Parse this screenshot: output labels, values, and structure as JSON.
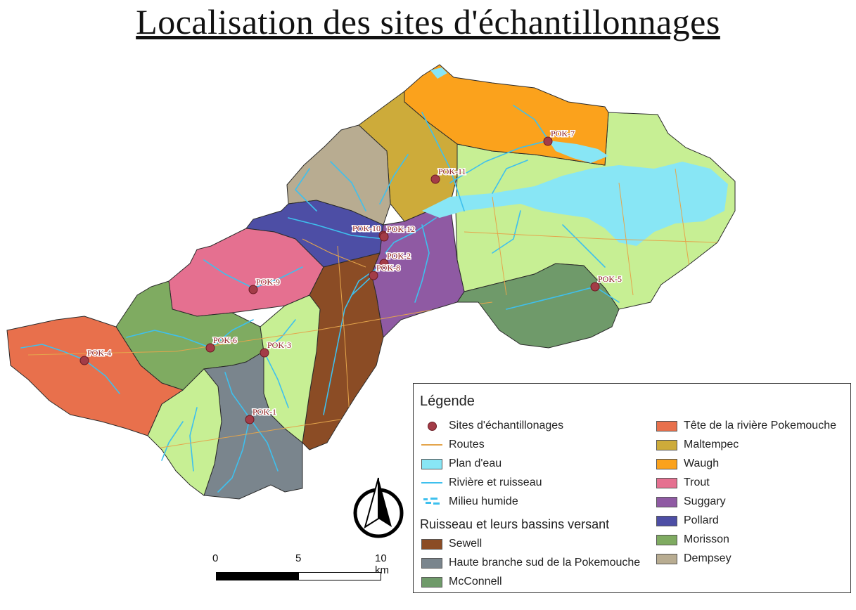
{
  "title": "Localisation des sites d'échantillonnages",
  "colors": {
    "sewell": "#8b4c25",
    "haute_branche": "#7a858d",
    "mcconnell": "#6f9a6a",
    "tete": "#e8704c",
    "maltempec": "#cdab3a",
    "waugh": "#fba21c",
    "trout": "#e57090",
    "suggary": "#8f5aa3",
    "pollard": "#4d4ea5",
    "morisson": "#7fab61",
    "dempsey": "#b8ac91",
    "pokemouche_main": "#c7ef94",
    "water": "#88e6f5",
    "river": "#3ec0ee",
    "road": "#e4a54c",
    "site": "#a33c47"
  },
  "legend": {
    "title": "Légende",
    "items": [
      {
        "label": "Sites d'échantillonages",
        "symbol": "point"
      },
      {
        "label": "Routes",
        "symbol": "road"
      },
      {
        "label": "Plan d'eau",
        "symbol": "water"
      },
      {
        "label": "Rivière et ruisseau",
        "symbol": "river"
      },
      {
        "label": "Milieu humide",
        "symbol": "wetland"
      }
    ],
    "section_title": "Ruisseau et leurs bassins versant",
    "basins_left": [
      {
        "label": "Sewell",
        "color_key": "sewell"
      },
      {
        "label": "Haute branche sud de la Pokemouche",
        "color_key": "haute_branche"
      },
      {
        "label": "McConnell",
        "color_key": "mcconnell"
      }
    ],
    "basins_right": [
      {
        "label": "Tête de la rivière Pokemouche",
        "color_key": "tete"
      },
      {
        "label": "Maltempec",
        "color_key": "maltempec"
      },
      {
        "label": "Waugh",
        "color_key": "waugh"
      },
      {
        "label": "Trout",
        "color_key": "trout"
      },
      {
        "label": "Suggary",
        "color_key": "suggary"
      },
      {
        "label": "Pollard",
        "color_key": "pollard"
      },
      {
        "label": "Morisson",
        "color_key": "morisson"
      },
      {
        "label": "Dempsey",
        "color_key": "dempsey"
      }
    ]
  },
  "sites": [
    "POK-7",
    "POK-11",
    "POK-10",
    "POK-12",
    "POK-2",
    "POK-8",
    "POK-9",
    "POK-5",
    "POK-6",
    "POK-3",
    "POK-4",
    "POK-1"
  ],
  "scale": {
    "labels": [
      "0",
      "5",
      "10 km"
    ]
  },
  "north_arrow": {
    "icon": "north-arrow-icon"
  }
}
